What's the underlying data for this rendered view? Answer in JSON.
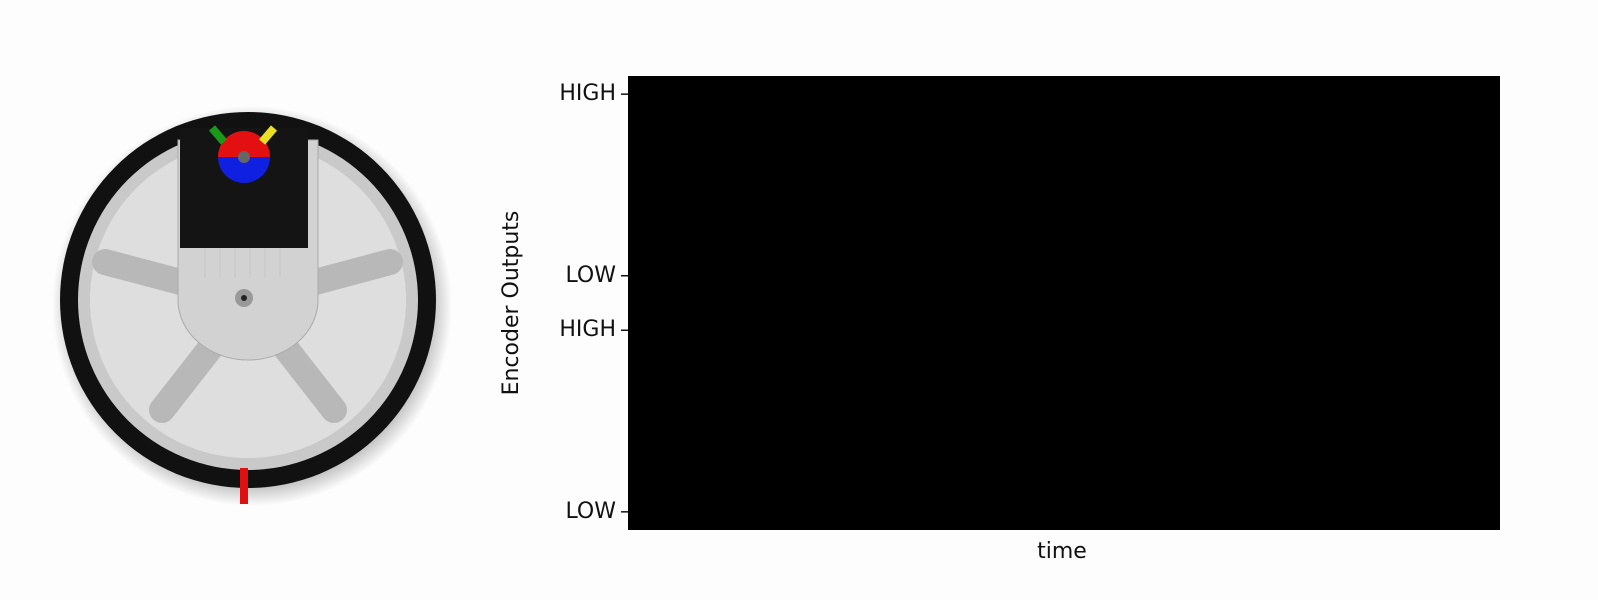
{
  "chart_data": {
    "type": "line",
    "xlabel": "time",
    "ylabel": "Encoder Outputs",
    "ylim": [
      -0.1,
      2.4
    ],
    "yticks": [
      {
        "value": 0,
        "label": "LOW"
      },
      {
        "value": 1,
        "label": "HIGH"
      },
      {
        "value": 1.3,
        "label": "LOW"
      },
      {
        "value": 2.3,
        "label": "HIGH"
      }
    ],
    "facecolor": "#000000"
  }
}
